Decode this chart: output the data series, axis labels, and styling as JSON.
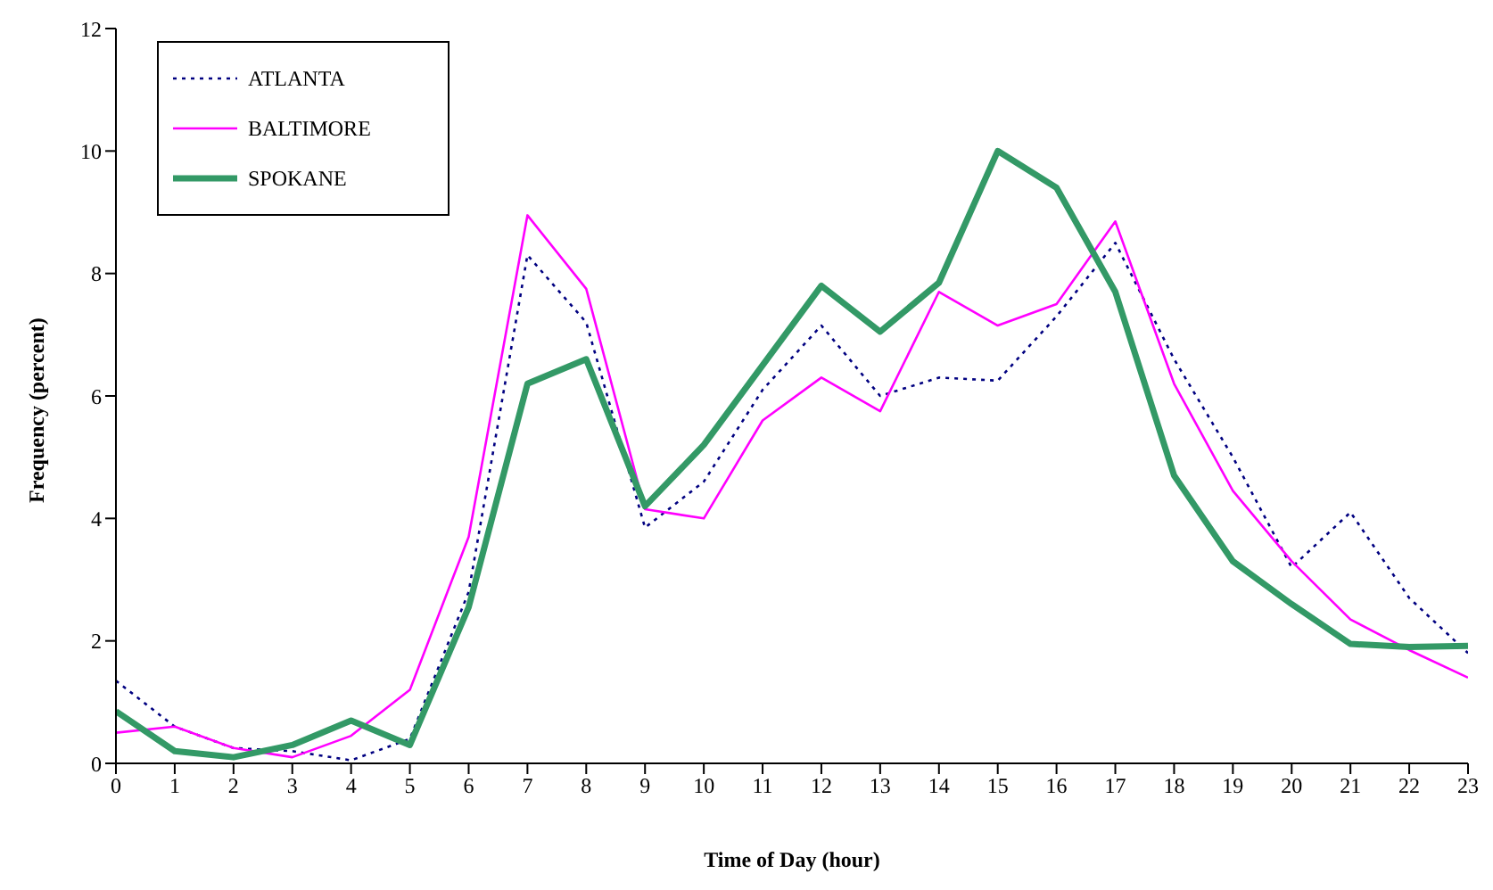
{
  "chart_data": {
    "type": "line",
    "xlabel": "Time of Day (hour)",
    "ylabel": "Frequency (percent)",
    "x": [
      0,
      1,
      2,
      3,
      4,
      5,
      6,
      7,
      8,
      9,
      10,
      11,
      12,
      13,
      14,
      15,
      16,
      17,
      18,
      19,
      20,
      21,
      22,
      23
    ],
    "xlim": [
      0,
      23
    ],
    "xticks": [
      0,
      1,
      2,
      3,
      4,
      5,
      6,
      7,
      8,
      9,
      10,
      11,
      12,
      13,
      14,
      15,
      16,
      17,
      18,
      19,
      20,
      21,
      22,
      23
    ],
    "ylim": [
      0,
      12
    ],
    "yticks": [
      0,
      2,
      4,
      6,
      8,
      10,
      12
    ],
    "grid": false,
    "legend": "top left",
    "marker": "none",
    "series": [
      {
        "name": "ATLANTA",
        "color": "#000080",
        "line_style": "dotted",
        "values": [
          1.35,
          0.6,
          0.25,
          0.2,
          0.05,
          0.4,
          2.8,
          8.3,
          7.2,
          3.85,
          4.6,
          6.1,
          7.15,
          6.0,
          6.3,
          6.25,
          7.3,
          8.5,
          6.6,
          5.0,
          3.2,
          4.1,
          2.7,
          1.8
        ]
      },
      {
        "name": "BALTIMORE",
        "color": "#ff00ff",
        "line_style": "solid",
        "values": [
          0.5,
          0.6,
          0.25,
          0.1,
          0.45,
          1.2,
          3.7,
          8.95,
          7.75,
          4.15,
          4.0,
          5.6,
          6.3,
          5.75,
          7.7,
          7.15,
          7.5,
          8.85,
          6.2,
          4.45,
          3.3,
          2.35,
          1.85,
          1.4
        ]
      },
      {
        "name": "SPOKANE",
        "color": "#339966",
        "line_style": "solid",
        "values": [
          0.85,
          0.2,
          0.1,
          0.3,
          0.7,
          0.3,
          2.55,
          6.2,
          6.6,
          4.2,
          5.2,
          6.5,
          7.8,
          7.05,
          7.85,
          10.0,
          9.4,
          7.7,
          4.7,
          3.3,
          2.6,
          1.95,
          1.9,
          1.92
        ]
      }
    ]
  }
}
